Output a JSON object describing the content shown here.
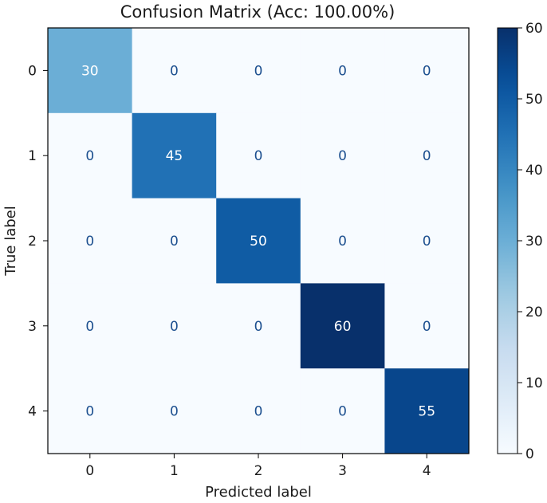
{
  "chart_data": {
    "type": "heatmap",
    "title": "Confusion Matrix (Acc: 100.00%)",
    "xlabel": "Predicted label",
    "ylabel": "True label",
    "x_categories": [
      "0",
      "1",
      "2",
      "3",
      "4"
    ],
    "y_categories": [
      "0",
      "1",
      "2",
      "3",
      "4"
    ],
    "matrix": [
      [
        30,
        0,
        0,
        0,
        0
      ],
      [
        0,
        45,
        0,
        0,
        0
      ],
      [
        0,
        0,
        50,
        0,
        0
      ],
      [
        0,
        0,
        0,
        60,
        0
      ],
      [
        0,
        0,
        0,
        0,
        55
      ]
    ],
    "colormap": "Blues",
    "colorbar": {
      "min": 0,
      "max": 60,
      "ticks": [
        0,
        10,
        20,
        30,
        40,
        50,
        60
      ]
    },
    "grid": false
  }
}
